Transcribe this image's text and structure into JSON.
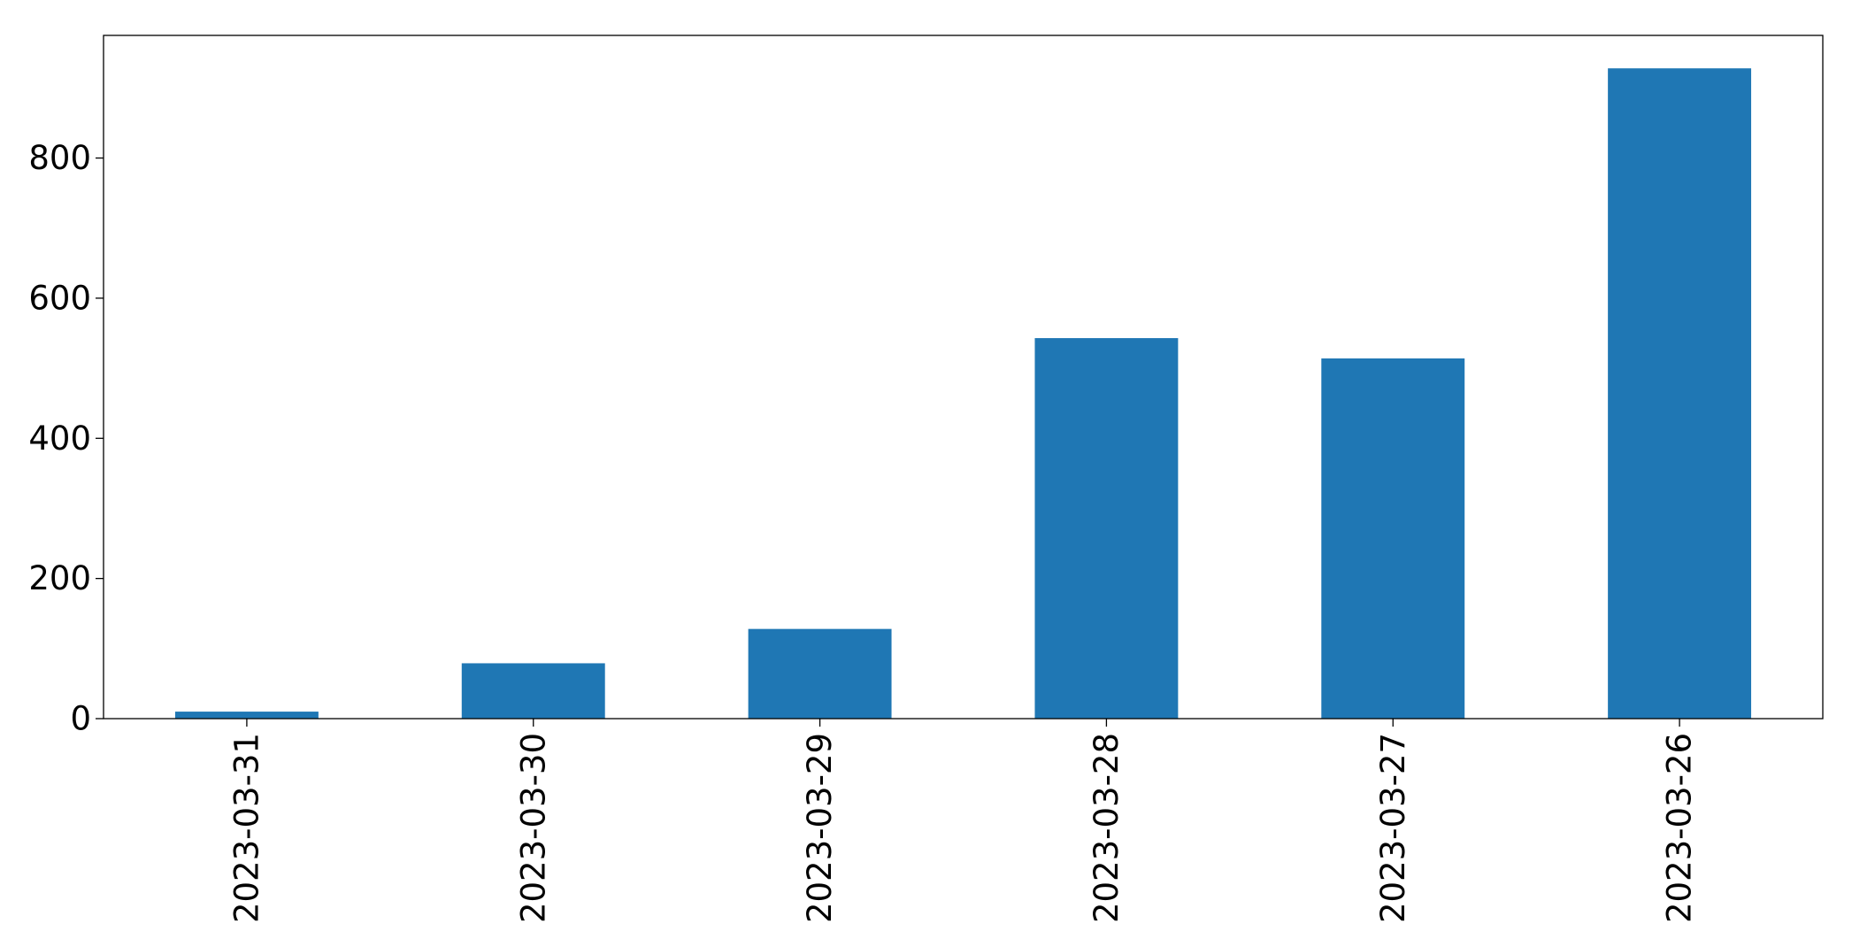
{
  "chart_data": {
    "type": "bar",
    "categories": [
      "2023-03-31",
      "2023-03-30",
      "2023-03-29",
      "2023-03-28",
      "2023-03-27",
      "2023-03-26"
    ],
    "values": [
      10,
      79,
      128,
      543,
      514,
      928
    ],
    "ylim": [
      0,
      975
    ],
    "yticks": [
      0,
      200,
      400,
      600,
      800
    ],
    "ytick_labels": [
      "0",
      "200",
      "400",
      "600",
      "800"
    ],
    "xtick_rotation": "vertical",
    "bar_color": "#1f77b4",
    "grid": false,
    "legend": "none"
  }
}
